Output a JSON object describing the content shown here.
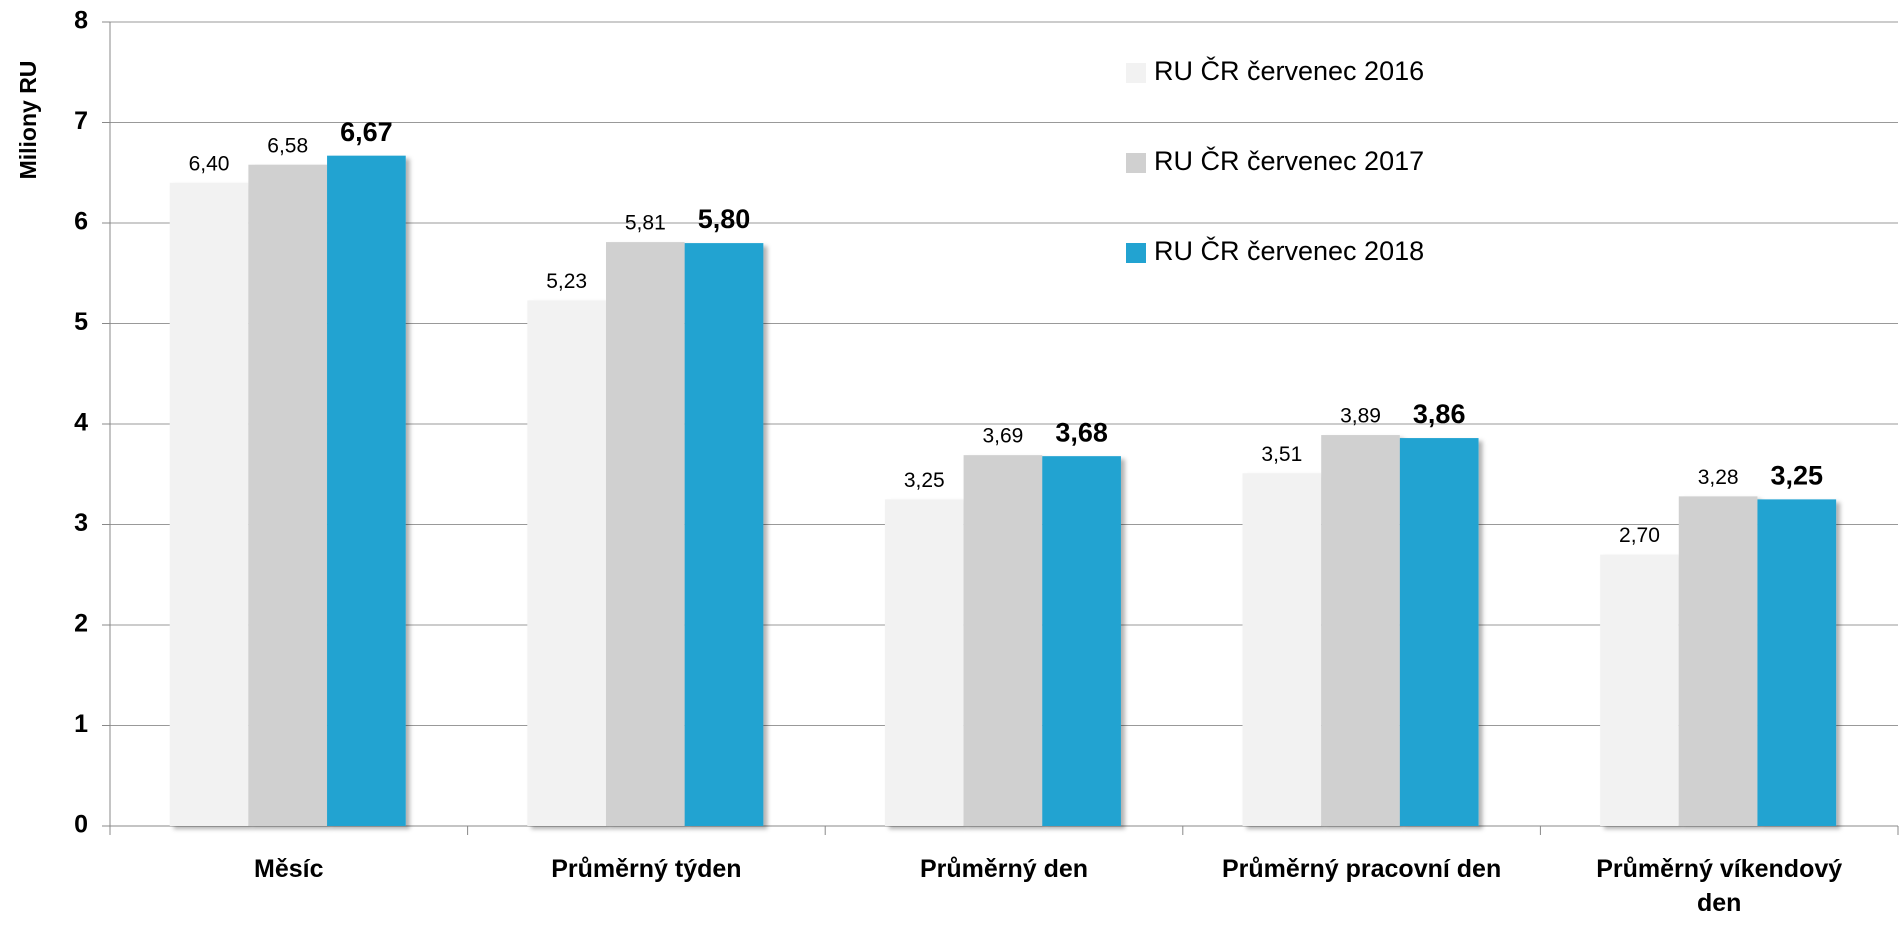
{
  "chart_data": {
    "type": "bar",
    "y_label": "Miliony RU",
    "categories": [
      "Měsíc",
      "Průměrný týden",
      "Průměrný den",
      "Průměrný pracovní den",
      "Průměrný víkendový den"
    ],
    "series": [
      {
        "name": "RU ČR červenec 2016",
        "color": "#f2f2f2",
        "values": [
          6.4,
          5.23,
          3.25,
          3.51,
          2.7
        ],
        "value_labels": [
          "6,40",
          "5,23",
          "3,25",
          "3,51",
          "2,70"
        ]
      },
      {
        "name": "RU ČR červenec 2017",
        "color": "#d0d0d0",
        "values": [
          6.58,
          5.81,
          3.69,
          3.89,
          3.28
        ],
        "value_labels": [
          "6,58",
          "5,81",
          "3,69",
          "3,89",
          "3,28"
        ]
      },
      {
        "name": "RU ČR červenec 2018",
        "color": "#22a3d1",
        "values": [
          6.67,
          5.8,
          3.68,
          3.86,
          3.25
        ],
        "value_labels": [
          "6,67",
          "5,80",
          "3,68",
          "3,86",
          "3,25"
        ]
      }
    ],
    "ylim": [
      0,
      8
    ],
    "yticks": [
      0,
      1,
      2,
      3,
      4,
      5,
      6,
      7,
      8
    ],
    "grid": true,
    "legend": "top-right"
  }
}
